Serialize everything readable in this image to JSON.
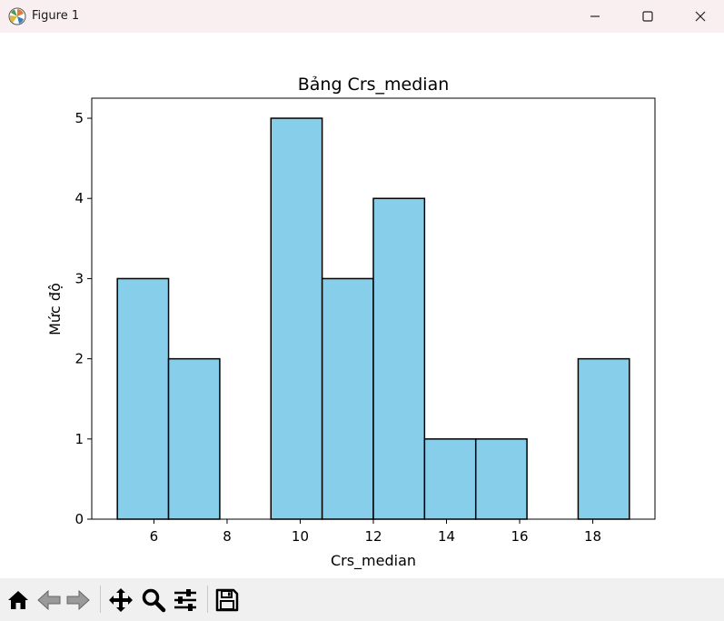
{
  "window": {
    "title": "Figure 1",
    "icon": "matplotlib-icon",
    "controls": [
      "minimize-icon",
      "maximize-icon",
      "close-icon"
    ]
  },
  "toolbar": {
    "buttons": [
      "home-icon",
      "back-icon",
      "forward-icon",
      "pan-icon",
      "zoom-icon",
      "configure-subplots-icon",
      "save-icon"
    ]
  },
  "colors": {
    "bar_fill": "#87ceeb",
    "bar_edge": "#000000"
  },
  "chart_data": {
    "type": "bar",
    "title": "Bảng Crs_median",
    "xlabel": "Crs_median",
    "ylabel": "Mức độ",
    "bin_edges": [
      5.0,
      6.4,
      7.8,
      9.2,
      10.6,
      12.0,
      13.4,
      14.8,
      16.2,
      17.6,
      19.0
    ],
    "values": [
      3,
      2,
      0,
      5,
      3,
      4,
      1,
      1,
      0,
      2
    ],
    "xlim": [
      4.3,
      19.7
    ],
    "ylim": [
      0,
      5.25
    ],
    "xticks": [
      6,
      8,
      10,
      12,
      14,
      16,
      18
    ],
    "yticks": [
      0,
      1,
      2,
      3,
      4,
      5
    ],
    "grid": false
  }
}
